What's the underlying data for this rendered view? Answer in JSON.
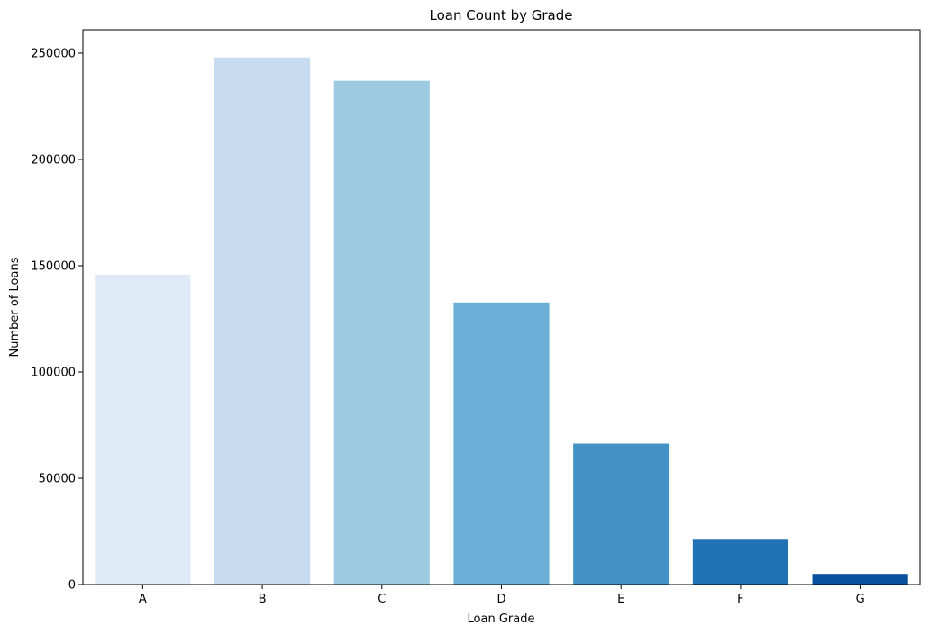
{
  "chart_data": {
    "type": "bar",
    "title": "Loan Count by Grade",
    "xlabel": "Loan Grade",
    "ylabel": "Number of Loans",
    "categories": [
      "A",
      "B",
      "C",
      "D",
      "E",
      "F",
      "G"
    ],
    "values": [
      145800,
      248000,
      237000,
      132700,
      66300,
      21500,
      5000
    ],
    "colors": [
      "#deebf7",
      "#c6dbef",
      "#9ecae1",
      "#6baed6",
      "#4292c6",
      "#2171b5",
      "#08519c"
    ],
    "ylim": [
      0,
      261000
    ],
    "yticks": [
      0,
      50000,
      100000,
      150000,
      200000,
      250000
    ],
    "ytick_labels": [
      "0",
      "50000",
      "100000",
      "150000",
      "200000",
      "250000"
    ],
    "grid": false,
    "legend": "none"
  }
}
